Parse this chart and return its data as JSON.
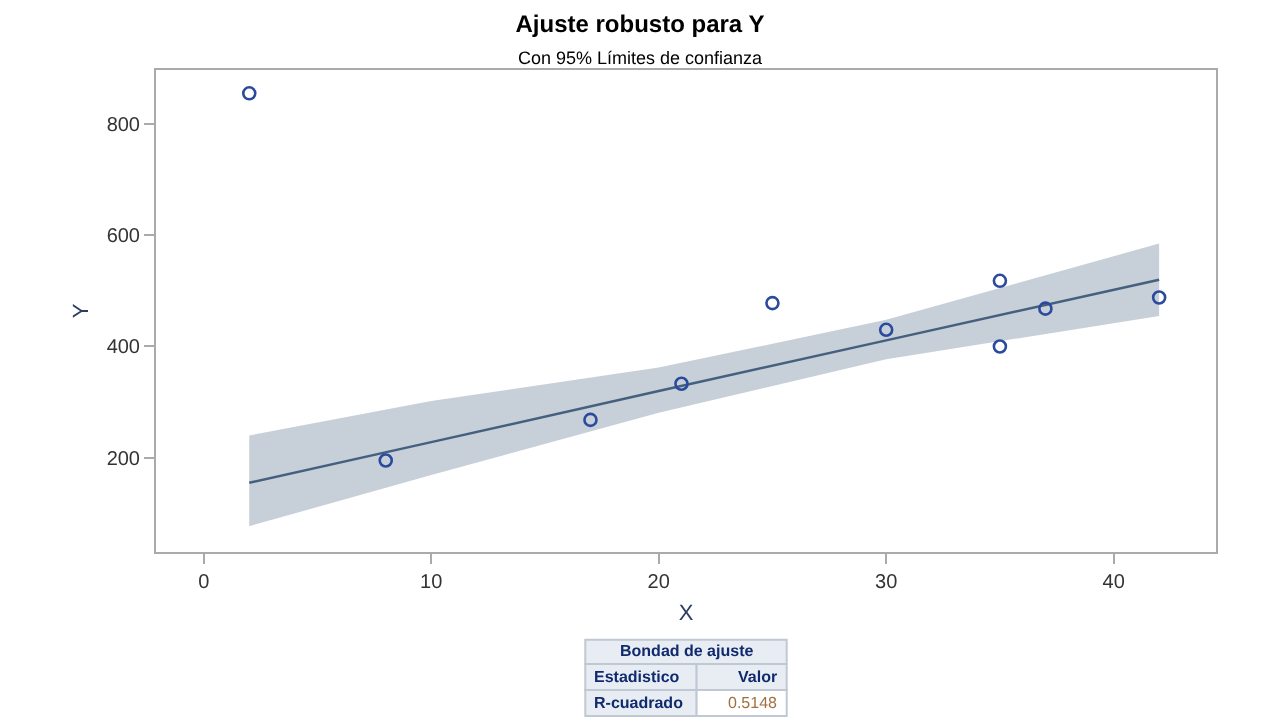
{
  "chart_data": {
    "type": "scatter",
    "title": "Ajuste robusto para Y",
    "subtitle": "Con 95% Límites de confianza",
    "xlabel": "X",
    "ylabel": "Y",
    "xlim": [
      -2.1,
      44.5
    ],
    "xticks": [
      0,
      10,
      20,
      30,
      40
    ],
    "ylim": [
      31,
      897
    ],
    "yticks": [
      200,
      400,
      600,
      800
    ],
    "marker": "circle",
    "series": [
      {
        "type": "line",
        "marker": "none",
        "color": "#44607e",
        "x": [
          2,
          10,
          20,
          30,
          42
        ],
        "values": [
          155,
          228,
          320,
          411,
          520
        ],
        "lower": [
          77,
          169,
          281,
          377,
          455
        ],
        "upper": [
          240,
          302,
          362,
          448,
          585
        ]
      },
      {
        "color": "#2a4a9c",
        "x": [
          2,
          8,
          17,
          21,
          25,
          30,
          35,
          35,
          37,
          42
        ],
        "values": [
          855,
          195,
          268,
          333,
          478,
          430,
          518,
          400,
          468,
          488
        ]
      }
    ],
    "annotations": [
      "Bondad de ajuste",
      "Estadistico",
      "Valor",
      "R-cuadrado",
      "0.5148"
    ]
  }
}
